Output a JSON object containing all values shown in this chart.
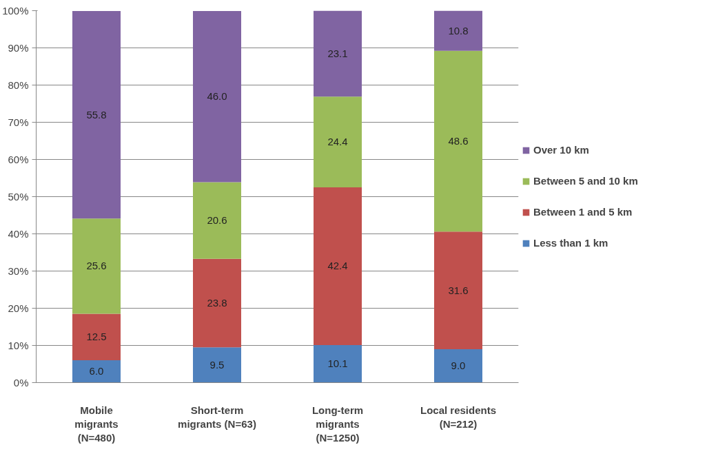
{
  "chart_data": {
    "type": "bar",
    "stacked": true,
    "categories": [
      "Mobile\nmigrants\n(N=480)",
      "Short-term\nmigrants (N=63)",
      "Long-term\nmigrants\n(N=1250)",
      "Local residents\n(N=212)"
    ],
    "series": [
      {
        "name": "Less than 1 km",
        "color": "#4f81bd",
        "values": [
          6.0,
          9.5,
          10.1,
          9.0
        ]
      },
      {
        "name": "Between 1 and 5 km",
        "color": "#c0504d",
        "values": [
          12.5,
          23.8,
          42.4,
          31.6
        ]
      },
      {
        "name": "Between 5 and 10 km",
        "color": "#9bbb59",
        "values": [
          25.6,
          20.6,
          24.4,
          48.6
        ]
      },
      {
        "name": "Over 10 km",
        "color": "#8064a2",
        "values": [
          55.8,
          46.0,
          23.1,
          10.8
        ]
      }
    ],
    "ylim": [
      0,
      100
    ],
    "yticks": [
      {
        "value": 0,
        "label": "0%"
      },
      {
        "value": 10,
        "label": "10%"
      },
      {
        "value": 20,
        "label": "20%"
      },
      {
        "value": 30,
        "label": "30%"
      },
      {
        "value": 40,
        "label": "40%"
      },
      {
        "value": 50,
        "label": "50%"
      },
      {
        "value": 60,
        "label": "60%"
      },
      {
        "value": 70,
        "label": "70%"
      },
      {
        "value": 80,
        "label": "80%"
      },
      {
        "value": 90,
        "label": "90%"
      },
      {
        "value": 100,
        "label": "100%"
      }
    ],
    "grid": "y",
    "legend": "right",
    "value_labels": [
      [
        "6.0",
        "9.5",
        "10.1",
        "9.0"
      ],
      [
        "12.5",
        "23.8",
        "42.4",
        "31.6"
      ],
      [
        "25.6",
        "20.6",
        "24.4",
        "48.6"
      ],
      [
        "55.8",
        "46.0",
        "23.1",
        "10.8"
      ]
    ]
  }
}
